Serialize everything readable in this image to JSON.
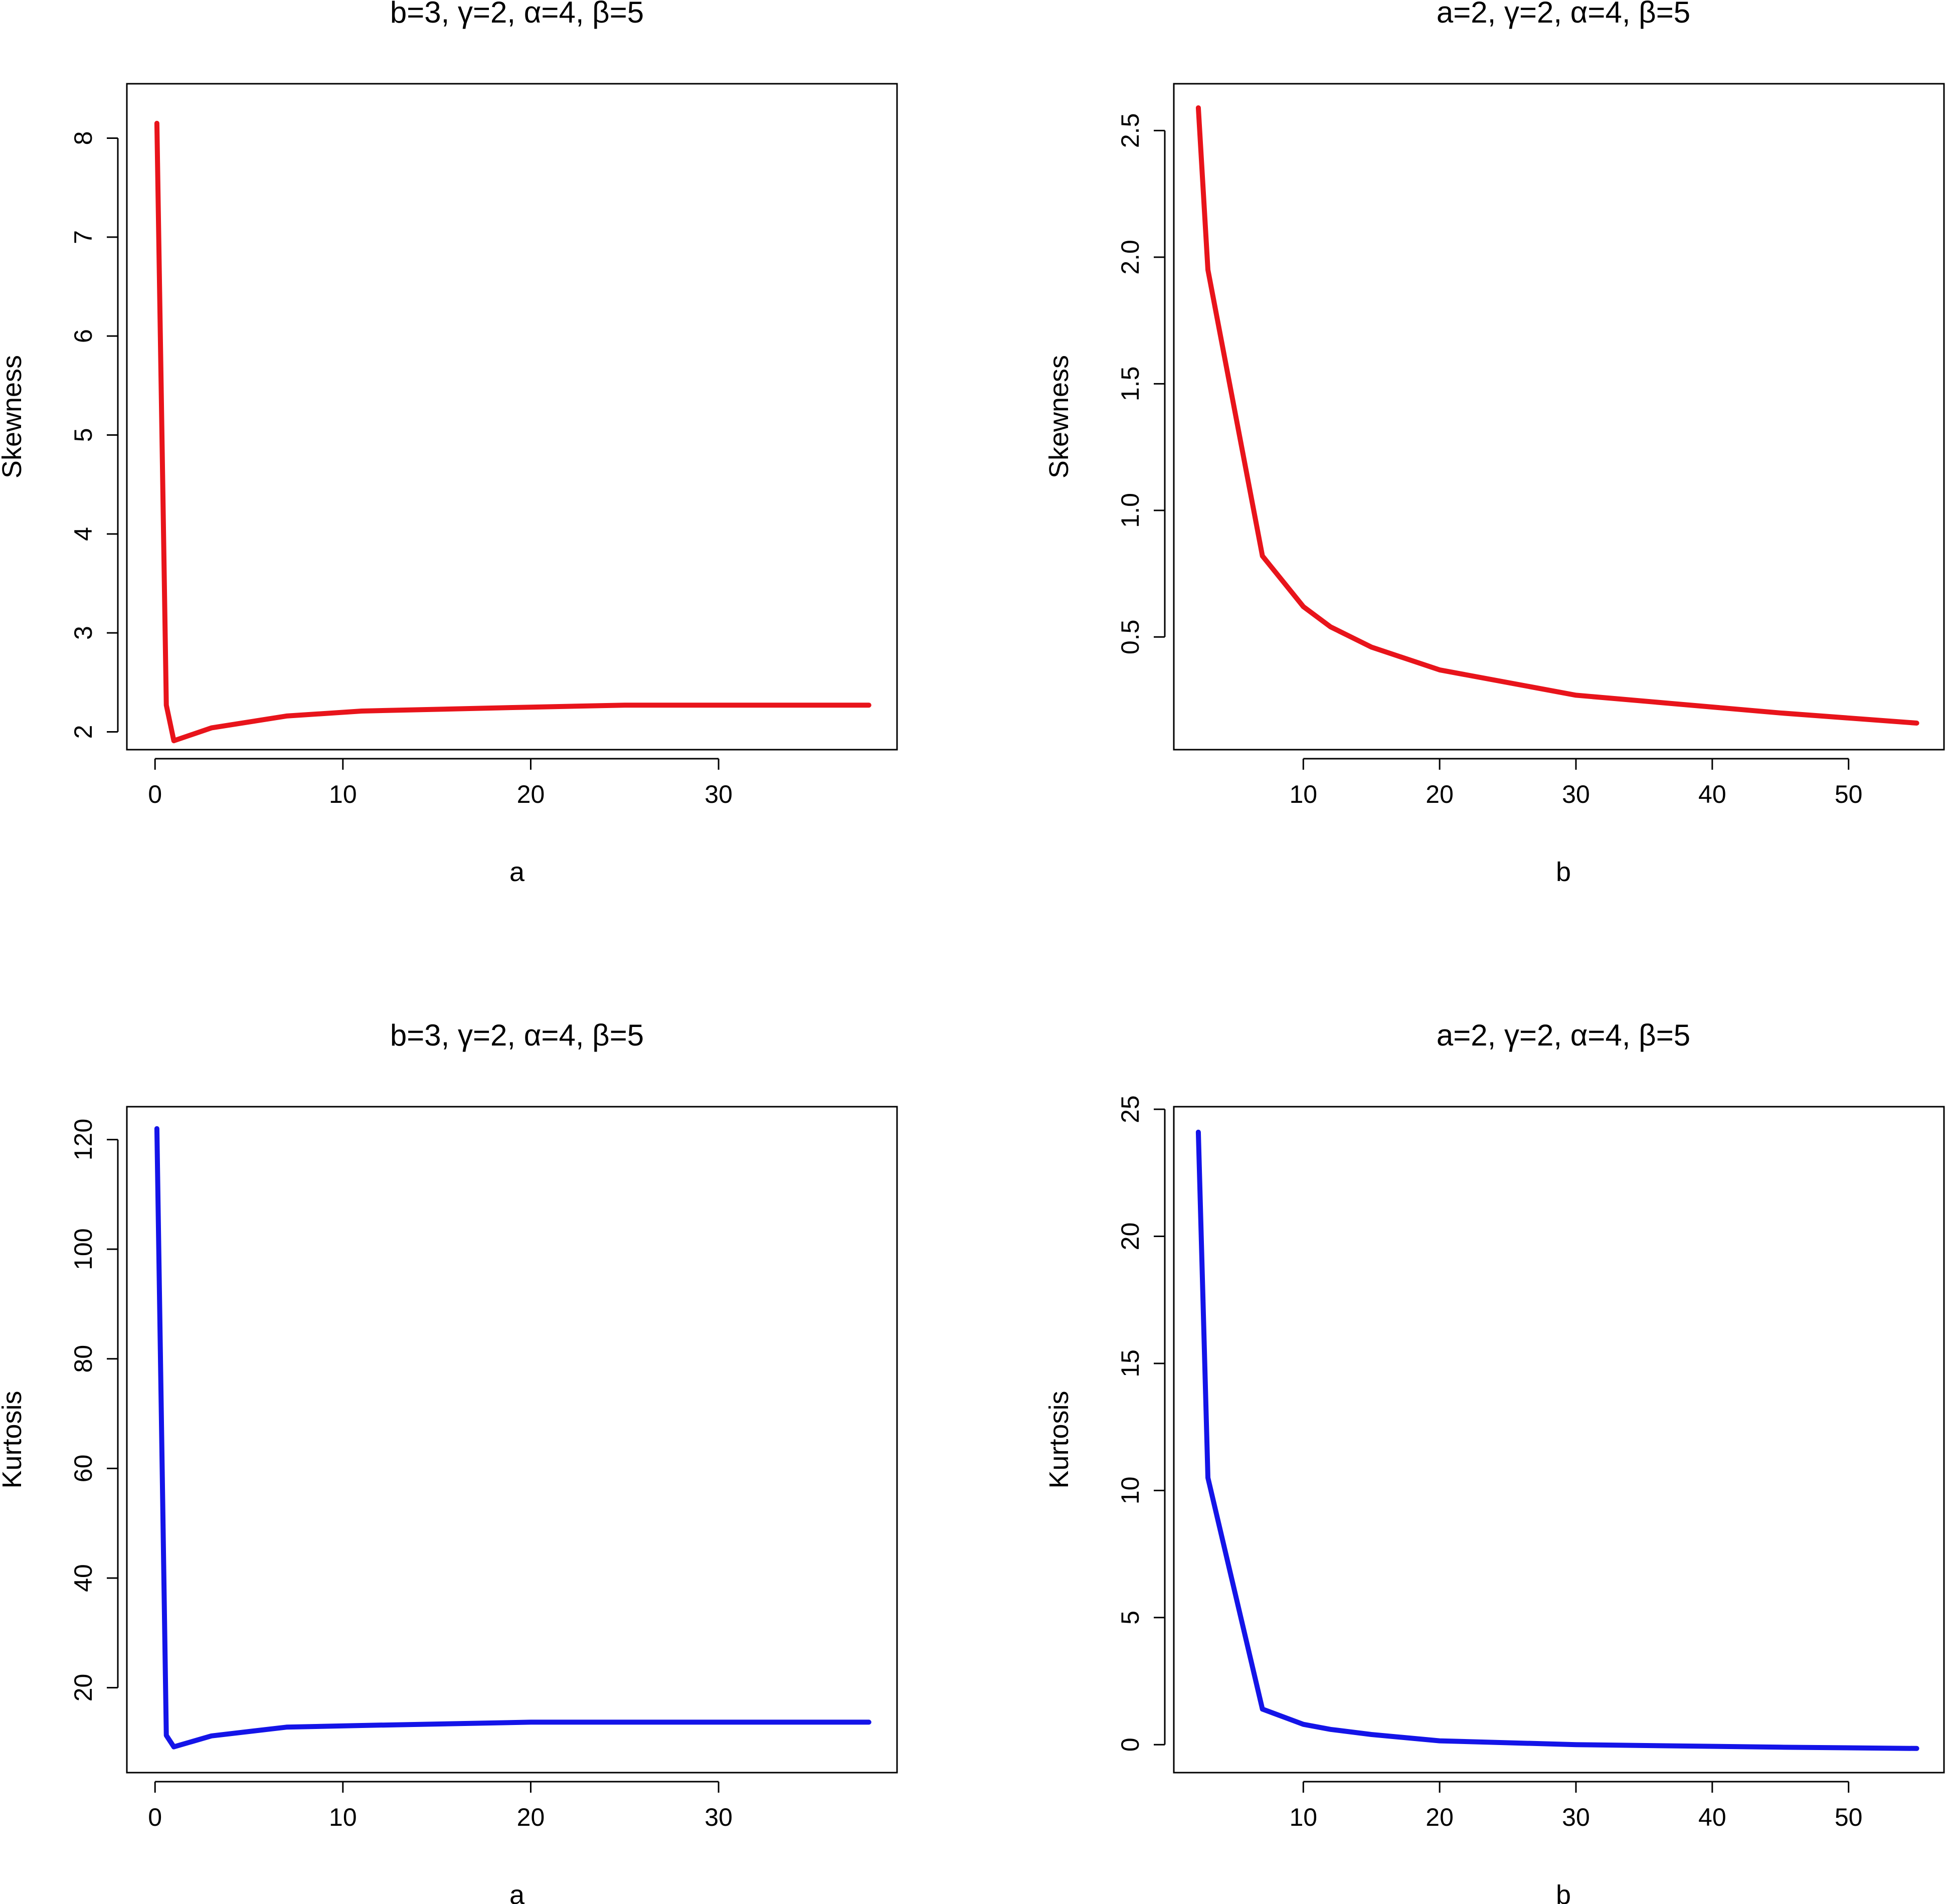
{
  "chart_data": [
    {
      "type": "line",
      "title": "b=3, γ=2, α=4, β=5",
      "xlabel": "a",
      "ylabel": "Skewness",
      "xlim": [
        -1.5,
        39.5
      ],
      "ylim": [
        1.82,
        8.55
      ],
      "xticks": [
        "0",
        "10",
        "20",
        "30"
      ],
      "yticks": [
        "2",
        "3",
        "4",
        "5",
        "6",
        "7",
        "8"
      ],
      "color": "#e8141b",
      "series": [
        {
          "x": [
            0.1,
            0.6,
            1,
            3,
            7,
            11,
            20,
            25,
            38
          ],
          "values": [
            8.15,
            2.27,
            1.91,
            2.04,
            2.16,
            2.21,
            2.25,
            2.27,
            2.27
          ]
        }
      ]
    },
    {
      "type": "line",
      "title": "a=2, γ=2, α=4, β=5",
      "xlabel": "b",
      "ylabel": "Skewness",
      "xlim": [
        0.5,
        57.0
      ],
      "ylim": [
        0.055,
        2.685
      ],
      "xticks": [
        "10",
        "20",
        "30",
        "40",
        "50"
      ],
      "yticks": [
        "0.5",
        "1.0",
        "1.5",
        "2.0",
        "2.5"
      ],
      "color": "#e8141b",
      "series": [
        {
          "x": [
            2.3,
            3,
            7,
            10,
            12,
            15,
            20,
            30,
            45,
            55
          ],
          "values": [
            2.59,
            1.95,
            0.82,
            0.62,
            0.54,
            0.46,
            0.37,
            0.27,
            0.2,
            0.16
          ]
        }
      ]
    },
    {
      "type": "line",
      "title": "b=3, γ=2, α=4, β=5",
      "xlabel": "a",
      "ylabel": "Kurtosis",
      "xlim": [
        -1.5,
        39.5
      ],
      "ylim": [
        4.5,
        126.0
      ],
      "xticks": [
        "0",
        "10",
        "20",
        "30"
      ],
      "yticks": [
        "20",
        "40",
        "60",
        "80",
        "100",
        "120"
      ],
      "color": "#1414e8",
      "series": [
        {
          "x": [
            0.1,
            0.6,
            1,
            3,
            7,
            11,
            20,
            25,
            38
          ],
          "values": [
            122.0,
            11.3,
            9.2,
            11.2,
            12.8,
            13.1,
            13.7,
            13.7,
            13.7
          ]
        }
      ]
    },
    {
      "type": "line",
      "title": "a=2, γ=2, α=4, β=5",
      "xlabel": "b",
      "ylabel": "Kurtosis",
      "xlim": [
        0.5,
        57.0
      ],
      "ylim": [
        -1.1,
        25.1
      ],
      "xticks": [
        "10",
        "20",
        "30",
        "40",
        "50"
      ],
      "yticks": [
        "0",
        "5",
        "10",
        "15",
        "20",
        "25"
      ],
      "color": "#1414e8",
      "series": [
        {
          "x": [
            2.3,
            3,
            7,
            10,
            12,
            15,
            20,
            30,
            45,
            55
          ],
          "values": [
            24.1,
            10.5,
            1.4,
            0.8,
            0.6,
            0.4,
            0.15,
            0.0,
            -0.1,
            -0.15
          ]
        }
      ]
    }
  ]
}
